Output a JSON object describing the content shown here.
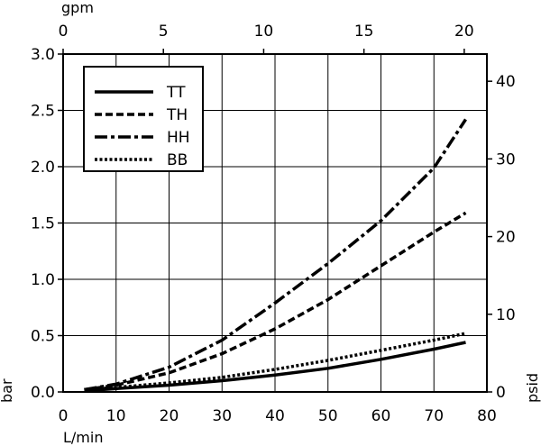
{
  "chart_data": {
    "type": "line",
    "title": "",
    "x_bottom": {
      "label": "L/min",
      "range": [
        0,
        80
      ],
      "ticks": [
        0,
        10,
        20,
        30,
        40,
        50,
        60,
        70,
        80
      ]
    },
    "x_top": {
      "label": "gpm",
      "range": [
        0,
        21.13
      ],
      "ticks": [
        0,
        5,
        10,
        15,
        20
      ]
    },
    "y_left": {
      "label": "bar",
      "range": [
        0,
        3.0
      ],
      "ticks": [
        "0.0",
        "0.5",
        "1.0",
        "1.5",
        "2.0",
        "2.5",
        "3.0"
      ]
    },
    "y_right": {
      "label": "psid",
      "range": [
        0,
        43.5
      ],
      "ticks": [
        0,
        10,
        20,
        30,
        40
      ]
    },
    "grid": true,
    "legend_position": "top-left",
    "series": [
      {
        "name": "TT",
        "dash": "solid",
        "x": [
          4,
          10,
          20,
          30,
          40,
          50,
          60,
          70,
          76
        ],
        "y": [
          0.01,
          0.03,
          0.06,
          0.1,
          0.15,
          0.21,
          0.29,
          0.38,
          0.44
        ]
      },
      {
        "name": "TH",
        "dash": "dashed",
        "x": [
          4,
          10,
          20,
          30,
          40,
          50,
          60,
          70,
          76
        ],
        "y": [
          0.02,
          0.06,
          0.17,
          0.34,
          0.56,
          0.82,
          1.12,
          1.42,
          1.59
        ]
      },
      {
        "name": "HH",
        "dash": "dashdot",
        "x": [
          4,
          10,
          20,
          30,
          40,
          50,
          60,
          70,
          76
        ],
        "y": [
          0.02,
          0.07,
          0.22,
          0.46,
          0.79,
          1.14,
          1.52,
          1.99,
          2.42
        ]
      },
      {
        "name": "BB",
        "dash": "dotted",
        "x": [
          4,
          10,
          20,
          30,
          40,
          50,
          60,
          70,
          76
        ],
        "y": [
          0.02,
          0.04,
          0.08,
          0.13,
          0.2,
          0.28,
          0.37,
          0.46,
          0.52
        ]
      }
    ]
  }
}
